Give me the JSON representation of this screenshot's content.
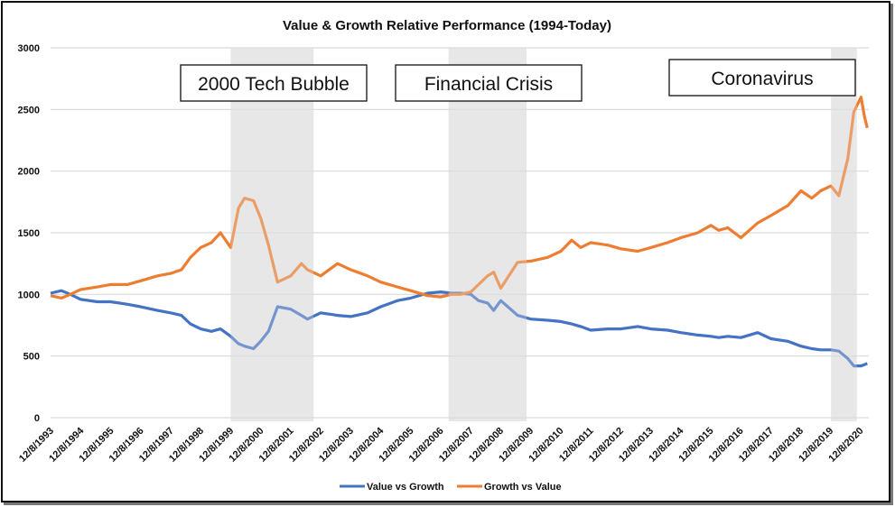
{
  "chart_data": {
    "type": "line",
    "title": "Value & Growth Relative Performance (1994-Today)",
    "xlabel": "",
    "ylabel": "",
    "ylim": [
      0,
      3000
    ],
    "yticks": [
      0,
      500,
      1000,
      1500,
      2000,
      2500,
      3000
    ],
    "grid": true,
    "legend_position": "bottom",
    "x_tick_labels": [
      "12/8/1993",
      "12/8/1994",
      "12/8/1995",
      "12/8/1996",
      "12/8/1997",
      "12/8/1998",
      "12/8/1999",
      "12/8/2000",
      "12/8/2001",
      "12/8/2002",
      "12/8/2003",
      "12/8/2004",
      "12/8/2005",
      "12/8/2006",
      "12/8/2007",
      "12/8/2008",
      "12/8/2009",
      "12/8/2010",
      "12/8/2011",
      "12/8/2012",
      "12/8/2013",
      "12/8/2014",
      "12/8/2015",
      "12/8/2016",
      "12/8/2017",
      "12/8/2018",
      "12/8/2019",
      "12/8/2020"
    ],
    "x_years": [
      1993.94,
      1994.3,
      1994.6,
      1994.94,
      1995.5,
      1995.94,
      1996.5,
      1996.94,
      1997.5,
      1997.94,
      1998.3,
      1998.6,
      1998.94,
      1999.3,
      1999.6,
      1999.94,
      2000.2,
      2000.4,
      2000.7,
      2000.94,
      2001.2,
      2001.5,
      2001.94,
      2002.3,
      2002.5,
      2002.94,
      2003.5,
      2003.94,
      2004.5,
      2004.94,
      2005.5,
      2005.94,
      2006.5,
      2006.94,
      2007.3,
      2007.6,
      2007.94,
      2008.2,
      2008.5,
      2008.7,
      2008.94,
      2009.5,
      2009.94,
      2010.5,
      2010.94,
      2011.3,
      2011.6,
      2011.94,
      2012.5,
      2012.94,
      2013.5,
      2013.94,
      2014.5,
      2014.94,
      2015.5,
      2015.94,
      2016.2,
      2016.5,
      2016.94,
      2017.5,
      2017.94,
      2018.5,
      2018.94,
      2019.3,
      2019.6,
      2019.94,
      2020.2,
      2020.5,
      2020.7,
      2020.94,
      2021.05,
      2021.15
    ],
    "series": [
      {
        "name": "Value vs Growth",
        "color": "#4472C4",
        "values": [
          1010,
          1030,
          1000,
          960,
          940,
          940,
          920,
          900,
          870,
          850,
          830,
          760,
          720,
          700,
          720,
          660,
          600,
          580,
          560,
          620,
          700,
          900,
          880,
          830,
          800,
          850,
          830,
          820,
          850,
          900,
          950,
          970,
          1010,
          1020,
          1010,
          1010,
          1000,
          950,
          930,
          870,
          950,
          830,
          800,
          790,
          780,
          760,
          740,
          710,
          720,
          720,
          740,
          720,
          710,
          690,
          670,
          660,
          650,
          660,
          650,
          690,
          640,
          620,
          580,
          560,
          550,
          550,
          540,
          480,
          420,
          420,
          430,
          440
        ]
      },
      {
        "name": "Growth vs Value",
        "color": "#ED7D31",
        "values": [
          990,
          970,
          1000,
          1040,
          1060,
          1080,
          1080,
          1110,
          1150,
          1170,
          1200,
          1300,
          1380,
          1420,
          1500,
          1380,
          1700,
          1780,
          1760,
          1620,
          1400,
          1100,
          1150,
          1250,
          1200,
          1150,
          1250,
          1200,
          1150,
          1100,
          1060,
          1030,
          990,
          980,
          1000,
          1000,
          1020,
          1080,
          1150,
          1180,
          1050,
          1260,
          1270,
          1300,
          1350,
          1440,
          1380,
          1420,
          1400,
          1370,
          1350,
          1380,
          1420,
          1460,
          1500,
          1560,
          1520,
          1540,
          1460,
          1580,
          1640,
          1720,
          1840,
          1780,
          1840,
          1880,
          1800,
          2100,
          2480,
          2600,
          2450,
          2350
        ]
      }
    ],
    "shaded_periods": [
      {
        "label": "2000 Tech Bubble",
        "start": 1999.94,
        "end": 2002.7
      },
      {
        "label": "Financial Crisis",
        "start": 2007.2,
        "end": 2009.8
      },
      {
        "label": "Coronavirus",
        "start": 2019.94,
        "end": 2020.8
      }
    ]
  }
}
